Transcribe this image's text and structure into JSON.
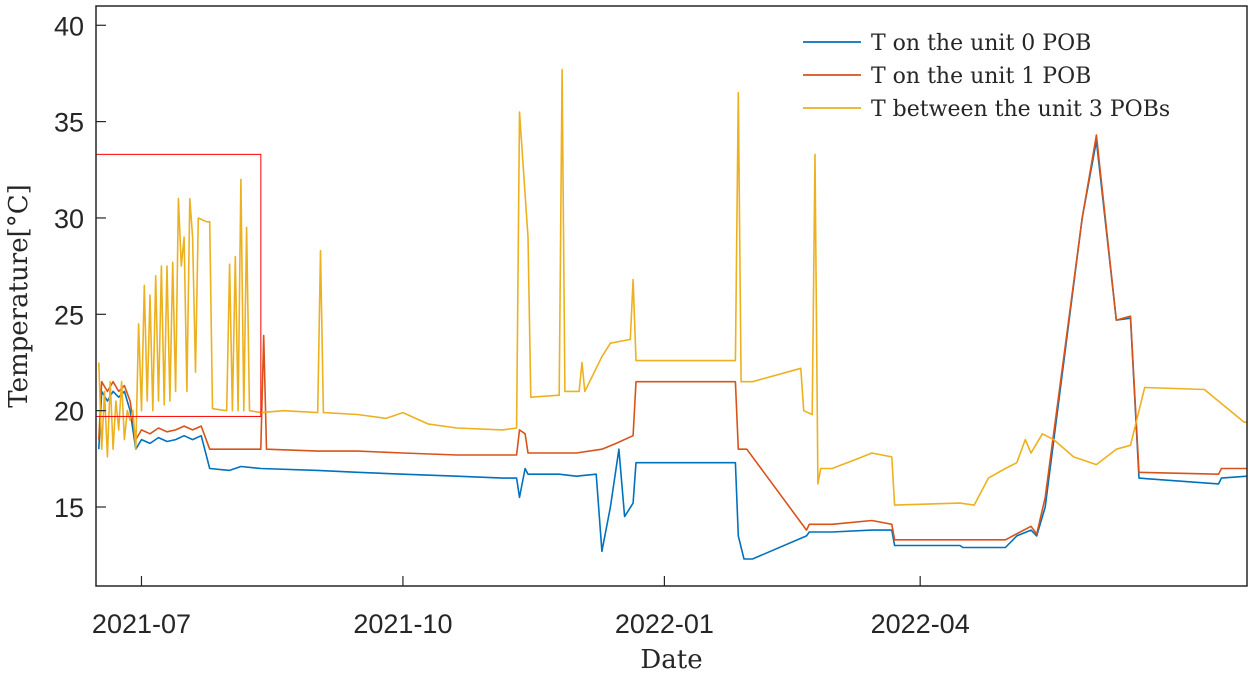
{
  "chart_data": {
    "type": "line",
    "title": "",
    "xlabel": "Date",
    "ylabel": "Temperature[°C]",
    "xlim": [
      "2021-06-15",
      "2022-07-25"
    ],
    "ylim": [
      10.9,
      41
    ],
    "xticks": [
      {
        "date": "2021-07-01",
        "label": "2021-07"
      },
      {
        "date": "2021-10-01",
        "label": "2021-10"
      },
      {
        "date": "2022-01-01",
        "label": "2022-01"
      },
      {
        "date": "2022-04-01",
        "label": "2022-04"
      }
    ],
    "yticks": [
      15,
      20,
      25,
      30,
      35,
      40
    ],
    "legend_location": "top-right",
    "grid": false,
    "highlight_box": {
      "x": [
        "2021-06-15",
        "2021-08-12"
      ],
      "y": [
        19.7,
        33.3
      ],
      "color": "#ff0000"
    },
    "series": [
      {
        "name": "T on the unit 0 POB",
        "color": "#0072BD",
        "points": [
          [
            "2021-06-16",
            18.0
          ],
          [
            "2021-06-17",
            21.0
          ],
          [
            "2021-06-19",
            20.5
          ],
          [
            "2021-06-21",
            21.0
          ],
          [
            "2021-06-23",
            20.7
          ],
          [
            "2021-06-25",
            21.0
          ],
          [
            "2021-06-27",
            20.0
          ],
          [
            "2021-06-29",
            18.0
          ],
          [
            "2021-07-01",
            18.5
          ],
          [
            "2021-07-04",
            18.3
          ],
          [
            "2021-07-07",
            18.6
          ],
          [
            "2021-07-10",
            18.4
          ],
          [
            "2021-07-13",
            18.5
          ],
          [
            "2021-07-16",
            18.7
          ],
          [
            "2021-07-19",
            18.5
          ],
          [
            "2021-07-22",
            18.7
          ],
          [
            "2021-07-25",
            17.0
          ],
          [
            "2021-08-01",
            16.9
          ],
          [
            "2021-08-05",
            17.1
          ],
          [
            "2021-08-12",
            17.0
          ],
          [
            "2021-09-01",
            16.9
          ],
          [
            "2021-09-15",
            16.8
          ],
          [
            "2021-10-01",
            16.7
          ],
          [
            "2021-10-20",
            16.6
          ],
          [
            "2021-11-05",
            16.5
          ],
          [
            "2021-11-10",
            16.5
          ],
          [
            "2021-11-11",
            15.5
          ],
          [
            "2021-11-13",
            17.0
          ],
          [
            "2021-11-14",
            16.7
          ],
          [
            "2021-11-25",
            16.7
          ],
          [
            "2021-12-01",
            16.6
          ],
          [
            "2021-12-08",
            16.7
          ],
          [
            "2021-12-10",
            12.7
          ],
          [
            "2021-12-13",
            15.0
          ],
          [
            "2021-12-16",
            18.0
          ],
          [
            "2021-12-18",
            14.5
          ],
          [
            "2021-12-21",
            15.2
          ],
          [
            "2021-12-22",
            17.3
          ],
          [
            "2022-01-01",
            17.3
          ],
          [
            "2022-01-26",
            17.3
          ],
          [
            "2022-01-27",
            13.5
          ],
          [
            "2022-01-29",
            12.3
          ],
          [
            "2022-02-01",
            12.3
          ],
          [
            "2022-02-20",
            13.5
          ],
          [
            "2022-02-21",
            13.7
          ],
          [
            "2022-03-01",
            13.7
          ],
          [
            "2022-03-15",
            13.8
          ],
          [
            "2022-03-22",
            13.8
          ],
          [
            "2022-03-23",
            13.0
          ],
          [
            "2022-04-15",
            13.0
          ],
          [
            "2022-04-16",
            12.9
          ],
          [
            "2022-05-01",
            12.9
          ],
          [
            "2022-05-05",
            13.5
          ],
          [
            "2022-05-10",
            13.8
          ],
          [
            "2022-05-12",
            13.5
          ],
          [
            "2022-05-15",
            15.0
          ],
          [
            "2022-05-28",
            30.0
          ],
          [
            "2022-06-02",
            34.0
          ],
          [
            "2022-06-09",
            24.7
          ],
          [
            "2022-06-14",
            24.8
          ],
          [
            "2022-06-17",
            16.5
          ],
          [
            "2022-07-15",
            16.2
          ],
          [
            "2022-07-16",
            16.5
          ],
          [
            "2022-07-25",
            16.6
          ]
        ]
      },
      {
        "name": "T on the unit 1 POB",
        "color": "#D95319",
        "points": [
          [
            "2021-06-16",
            18.5
          ],
          [
            "2021-06-17",
            21.5
          ],
          [
            "2021-06-19",
            21.0
          ],
          [
            "2021-06-21",
            21.5
          ],
          [
            "2021-06-23",
            21.0
          ],
          [
            "2021-06-25",
            21.3
          ],
          [
            "2021-06-27",
            20.5
          ],
          [
            "2021-06-29",
            18.5
          ],
          [
            "2021-07-01",
            19.0
          ],
          [
            "2021-07-04",
            18.8
          ],
          [
            "2021-07-07",
            19.1
          ],
          [
            "2021-07-10",
            18.9
          ],
          [
            "2021-07-13",
            19.0
          ],
          [
            "2021-07-16",
            19.2
          ],
          [
            "2021-07-19",
            19.0
          ],
          [
            "2021-07-22",
            19.2
          ],
          [
            "2021-07-25",
            18.0
          ],
          [
            "2021-08-01",
            18.0
          ],
          [
            "2021-08-05",
            18.0
          ],
          [
            "2021-08-12",
            18.0
          ],
          [
            "2021-08-13",
            23.9
          ],
          [
            "2021-08-14",
            18.0
          ],
          [
            "2021-09-01",
            17.9
          ],
          [
            "2021-09-15",
            17.9
          ],
          [
            "2021-10-01",
            17.8
          ],
          [
            "2021-10-20",
            17.7
          ],
          [
            "2021-11-10",
            17.7
          ],
          [
            "2021-11-11",
            19.0
          ],
          [
            "2021-11-13",
            18.8
          ],
          [
            "2021-11-14",
            17.8
          ],
          [
            "2021-12-01",
            17.8
          ],
          [
            "2021-12-10",
            18.0
          ],
          [
            "2021-12-15",
            18.3
          ],
          [
            "2021-12-21",
            18.7
          ],
          [
            "2021-12-22",
            21.5
          ],
          [
            "2022-01-01",
            21.5
          ],
          [
            "2022-01-26",
            21.5
          ],
          [
            "2022-01-27",
            18.0
          ],
          [
            "2022-01-30",
            18.0
          ],
          [
            "2022-02-20",
            13.8
          ],
          [
            "2022-02-21",
            14.1
          ],
          [
            "2022-03-01",
            14.1
          ],
          [
            "2022-03-15",
            14.3
          ],
          [
            "2022-03-22",
            14.1
          ],
          [
            "2022-03-23",
            13.3
          ],
          [
            "2022-04-15",
            13.3
          ],
          [
            "2022-05-01",
            13.3
          ],
          [
            "2022-05-10",
            14.0
          ],
          [
            "2022-05-12",
            13.6
          ],
          [
            "2022-05-15",
            15.5
          ],
          [
            "2022-05-28",
            30.0
          ],
          [
            "2022-06-02",
            34.3
          ],
          [
            "2022-06-09",
            24.7
          ],
          [
            "2022-06-14",
            24.9
          ],
          [
            "2022-06-17",
            16.8
          ],
          [
            "2022-07-15",
            16.7
          ],
          [
            "2022-07-16",
            17.0
          ],
          [
            "2022-07-25",
            17.0
          ]
        ]
      },
      {
        "name": "T between the unit 3 POBs",
        "color": "#EDB120",
        "points": [
          [
            "2021-06-16",
            22.5
          ],
          [
            "2021-06-17",
            18.0
          ],
          [
            "2021-06-18",
            21.0
          ],
          [
            "2021-06-19",
            17.6
          ],
          [
            "2021-06-20",
            21.5
          ],
          [
            "2021-06-21",
            18.0
          ],
          [
            "2021-06-22",
            20.5
          ],
          [
            "2021-06-23",
            19.0
          ],
          [
            "2021-06-24",
            21.5
          ],
          [
            "2021-06-25",
            18.5
          ],
          [
            "2021-06-26",
            20.0
          ],
          [
            "2021-06-27",
            19.5
          ],
          [
            "2021-06-28",
            20.0
          ],
          [
            "2021-06-29",
            18.0
          ],
          [
            "2021-06-30",
            24.5
          ],
          [
            "2021-07-01",
            20.0
          ],
          [
            "2021-07-02",
            26.5
          ],
          [
            "2021-07-03",
            20.5
          ],
          [
            "2021-07-04",
            26.0
          ],
          [
            "2021-07-05",
            20.0
          ],
          [
            "2021-07-06",
            27.0
          ],
          [
            "2021-07-07",
            20.5
          ],
          [
            "2021-07-08",
            27.5
          ],
          [
            "2021-07-09",
            20.3
          ],
          [
            "2021-07-10",
            27.5
          ],
          [
            "2021-07-11",
            20.5
          ],
          [
            "2021-07-12",
            27.7
          ],
          [
            "2021-07-13",
            21.0
          ],
          [
            "2021-07-14",
            31.0
          ],
          [
            "2021-07-15",
            27.5
          ],
          [
            "2021-07-16",
            29.0
          ],
          [
            "2021-07-17",
            21.0
          ],
          [
            "2021-07-18",
            31.0
          ],
          [
            "2021-07-19",
            29.0
          ],
          [
            "2021-07-20",
            22.0
          ],
          [
            "2021-07-21",
            30.0
          ],
          [
            "2021-07-24",
            29.8
          ],
          [
            "2021-07-25",
            29.8
          ],
          [
            "2021-07-26",
            20.1
          ],
          [
            "2021-07-31",
            20.0
          ],
          [
            "2021-08-01",
            27.6
          ],
          [
            "2021-08-02",
            20.0
          ],
          [
            "2021-08-03",
            28.0
          ],
          [
            "2021-08-04",
            20.0
          ],
          [
            "2021-08-05",
            32.0
          ],
          [
            "2021-08-06",
            20.0
          ],
          [
            "2021-08-07",
            29.5
          ],
          [
            "2021-08-08",
            20.0
          ],
          [
            "2021-08-12",
            19.9
          ],
          [
            "2021-08-20",
            20.0
          ],
          [
            "2021-09-01",
            19.9
          ],
          [
            "2021-09-02",
            28.3
          ],
          [
            "2021-09-03",
            19.9
          ],
          [
            "2021-09-15",
            19.8
          ],
          [
            "2021-09-25",
            19.6
          ],
          [
            "2021-10-01",
            19.9
          ],
          [
            "2021-10-10",
            19.3
          ],
          [
            "2021-10-20",
            19.1
          ],
          [
            "2021-11-05",
            19.0
          ],
          [
            "2021-11-10",
            19.1
          ],
          [
            "2021-11-11",
            35.5
          ],
          [
            "2021-11-14",
            29.0
          ],
          [
            "2021-11-15",
            20.7
          ],
          [
            "2021-11-25",
            20.8
          ],
          [
            "2021-11-26",
            37.7
          ],
          [
            "2021-11-27",
            21.0
          ],
          [
            "2021-12-02",
            21.0
          ],
          [
            "2021-12-03",
            22.5
          ],
          [
            "2021-12-04",
            21.0
          ],
          [
            "2021-12-10",
            22.8
          ],
          [
            "2021-12-13",
            23.5
          ],
          [
            "2021-12-20",
            23.7
          ],
          [
            "2021-12-21",
            26.8
          ],
          [
            "2021-12-22",
            22.6
          ],
          [
            "2022-01-01",
            22.6
          ],
          [
            "2022-01-26",
            22.6
          ],
          [
            "2022-01-27",
            36.5
          ],
          [
            "2022-01-28",
            21.5
          ],
          [
            "2022-02-01",
            21.5
          ],
          [
            "2022-02-18",
            22.2
          ],
          [
            "2022-02-19",
            20.0
          ],
          [
            "2022-02-22",
            19.8
          ],
          [
            "2022-02-23",
            33.3
          ],
          [
            "2022-02-24",
            16.2
          ],
          [
            "2022-02-25",
            17.0
          ],
          [
            "2022-03-01",
            17.0
          ],
          [
            "2022-03-10",
            17.5
          ],
          [
            "2022-03-15",
            17.8
          ],
          [
            "2022-03-22",
            17.6
          ],
          [
            "2022-03-23",
            15.1
          ],
          [
            "2022-04-15",
            15.2
          ],
          [
            "2022-04-20",
            15.1
          ],
          [
            "2022-04-25",
            16.5
          ],
          [
            "2022-05-01",
            17.0
          ],
          [
            "2022-05-05",
            17.3
          ],
          [
            "2022-05-08",
            18.5
          ],
          [
            "2022-05-10",
            17.8
          ],
          [
            "2022-05-14",
            18.8
          ],
          [
            "2022-05-18",
            18.5
          ],
          [
            "2022-05-25",
            17.6
          ],
          [
            "2022-06-02",
            17.2
          ],
          [
            "2022-06-09",
            18.0
          ],
          [
            "2022-06-14",
            18.2
          ],
          [
            "2022-06-19",
            21.2
          ],
          [
            "2022-07-10",
            21.1
          ],
          [
            "2022-07-24",
            19.4
          ],
          [
            "2022-07-25",
            19.4
          ]
        ]
      }
    ]
  }
}
